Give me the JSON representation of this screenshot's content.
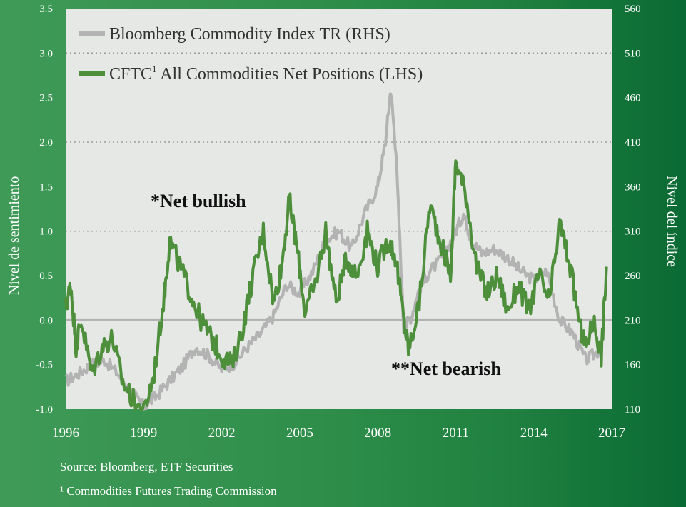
{
  "chart_data": {
    "type": "line",
    "title": "",
    "ylabel_left": "Nivel de sentimiento",
    "ylabel_right": "Nivel del índice",
    "left_ticks": [
      "-1.0",
      "-0.5",
      "0.0",
      "0.5",
      "1.0",
      "1.5",
      "2.0",
      "2.5",
      "3.0",
      "3.5"
    ],
    "right_ticks": [
      "110",
      "160",
      "210",
      "260",
      "310",
      "360",
      "410",
      "460",
      "510",
      "560"
    ],
    "x_ticks": [
      "1996",
      "1999",
      "2002",
      "2005",
      "2008",
      "2011",
      "2014",
      "2017"
    ],
    "ylim_left": [
      -1.0,
      3.5
    ],
    "ylim_right": [
      110,
      560
    ],
    "xlim": [
      1996,
      2017
    ],
    "legend": {
      "s1_label": "Bloomberg Commodity Index TR (RHS)",
      "s2_label": "CFTC",
      "s2_sup": "1",
      "s2_label_rest": " All Commodities Net Positions (LHS)"
    },
    "annotations": {
      "bullish": "*Net bullish",
      "bearish": "**Net bearish"
    },
    "series": [
      {
        "name": "Bloomberg Commodity Index TR (RHS)",
        "axis": "right",
        "color": "#b3b3b3",
        "x": [
          1996.0,
          1996.5,
          1997.0,
          1997.5,
          1998.0,
          1998.5,
          1999.0,
          1999.5,
          2000.0,
          2000.5,
          2001.0,
          2001.5,
          2002.0,
          2002.5,
          2003.0,
          2003.5,
          2004.0,
          2004.5,
          2005.0,
          2005.5,
          2006.0,
          2006.5,
          2007.0,
          2007.5,
          2008.0,
          2008.3,
          2008.5,
          2008.7,
          2009.0,
          2009.3,
          2009.6,
          2010.0,
          2010.5,
          2011.0,
          2011.3,
          2011.6,
          2012.0,
          2012.5,
          2013.0,
          2013.5,
          2014.0,
          2014.5,
          2015.0,
          2015.5,
          2016.0,
          2016.5
        ],
        "values": [
          141,
          150,
          160,
          165,
          150,
          130,
          113,
          125,
          142,
          158,
          180,
          170,
          155,
          162,
          180,
          195,
          215,
          250,
          240,
          265,
          300,
          310,
          290,
          330,
          360,
          410,
          470,
          400,
          200,
          215,
          245,
          265,
          280,
          310,
          330,
          300,
          285,
          290,
          280,
          265,
          255,
          265,
          210,
          195,
          165,
          175
        ]
      },
      {
        "name": "CFTC All Commodities Net Positions (LHS)",
        "axis": "left",
        "color": "#4d8f3b",
        "x": [
          1996.0,
          1996.2,
          1996.4,
          1996.6,
          1997.0,
          1997.4,
          1997.8,
          1998.2,
          1998.6,
          1999.0,
          1999.4,
          1999.8,
          2000.0,
          2000.4,
          2000.8,
          2001.2,
          2001.6,
          2002.0,
          2002.4,
          2002.8,
          2003.2,
          2003.6,
          2004.0,
          2004.3,
          2004.6,
          2004.9,
          2005.2,
          2005.6,
          2006.0,
          2006.4,
          2006.8,
          2007.2,
          2007.6,
          2008.0,
          2008.4,
          2008.7,
          2009.0,
          2009.2,
          2009.6,
          2010.0,
          2010.4,
          2010.8,
          2011.0,
          2011.4,
          2011.8,
          2012.2,
          2012.6,
          2013.0,
          2013.4,
          2013.8,
          2014.2,
          2014.6,
          2015.0,
          2015.4,
          2015.8,
          2016.0,
          2016.3,
          2016.6,
          2016.8
        ],
        "values": [
          0.15,
          0.4,
          -0.3,
          0.0,
          -0.6,
          -0.3,
          -0.2,
          -0.7,
          -0.9,
          -1.05,
          -0.6,
          0.3,
          0.9,
          0.6,
          0.3,
          0.0,
          -0.2,
          -0.4,
          -0.5,
          -0.1,
          0.5,
          1.0,
          0.2,
          0.6,
          1.35,
          0.8,
          0.1,
          0.4,
          1.0,
          0.2,
          0.7,
          0.5,
          1.0,
          0.6,
          0.9,
          0.7,
          0.0,
          -0.35,
          0.2,
          1.3,
          0.9,
          0.5,
          1.8,
          1.4,
          0.6,
          0.3,
          0.5,
          0.1,
          0.4,
          0.1,
          0.5,
          0.2,
          1.1,
          0.6,
          -0.1,
          -0.3,
          0.0,
          -0.4,
          0.6
        ]
      }
    ]
  },
  "footer": {
    "source": "Source: Bloomberg, ETF Securities",
    "footnote": "¹ Commodities Futures Trading Commission"
  }
}
